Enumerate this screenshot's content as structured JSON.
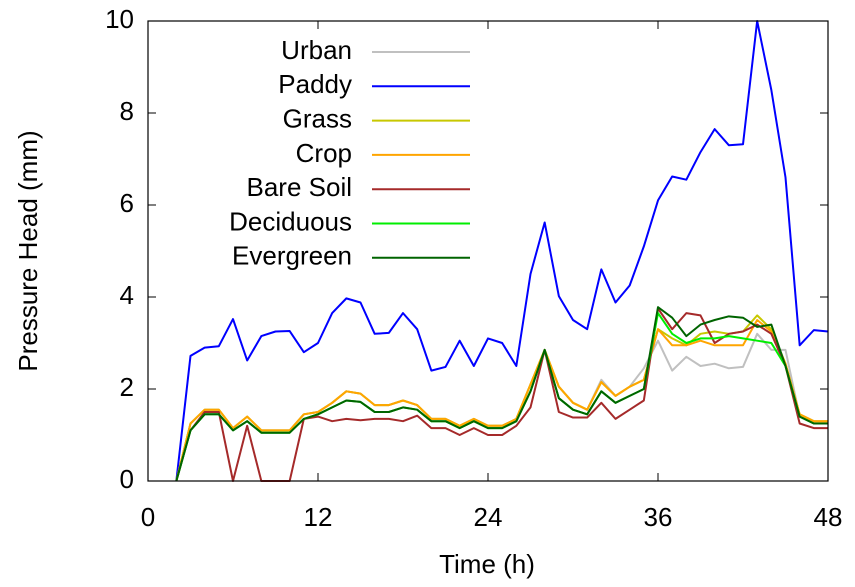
{
  "chart_data": {
    "type": "line",
    "xlabel": "Time (h)",
    "ylabel": "Pressure Head (mm)",
    "xlim": [
      0,
      48
    ],
    "ylim": [
      0,
      10
    ],
    "xticks": [
      0,
      12,
      24,
      36,
      48
    ],
    "yticks": [
      0,
      2,
      4,
      6,
      8,
      10
    ],
    "legend": "top-left",
    "x": [
      2,
      3,
      4,
      5,
      6,
      7,
      8,
      9,
      10,
      11,
      12,
      13,
      14,
      15,
      16,
      17,
      18,
      19,
      20,
      21,
      22,
      23,
      24,
      25,
      26,
      27,
      28,
      29,
      30,
      31,
      32,
      33,
      34,
      35,
      36,
      37,
      38,
      39,
      40,
      41,
      42,
      43,
      44,
      45,
      46,
      47,
      48
    ],
    "series": [
      {
        "name": "Urban",
        "color": "#c0c0c0",
        "values": [
          0,
          1.25,
          1.55,
          1.55,
          1.15,
          1.4,
          1.1,
          1.1,
          1.1,
          1.45,
          1.5,
          1.7,
          1.95,
          1.9,
          1.65,
          1.65,
          1.75,
          1.65,
          1.35,
          1.35,
          1.2,
          1.35,
          1.2,
          1.2,
          1.35,
          2.1,
          2.85,
          2.05,
          1.7,
          1.55,
          2.2,
          1.85,
          2.05,
          2.45,
          3.05,
          2.4,
          2.7,
          2.5,
          2.55,
          2.45,
          2.48,
          3.2,
          2.85,
          2.85,
          1.4,
          1.3,
          1.3
        ]
      },
      {
        "name": "Paddy",
        "color": "#0000ff",
        "values": [
          0,
          2.72,
          2.9,
          2.93,
          3.52,
          2.62,
          3.15,
          3.25,
          3.26,
          2.8,
          3.0,
          3.65,
          3.97,
          3.88,
          3.2,
          3.22,
          3.65,
          3.3,
          2.4,
          2.48,
          3.05,
          2.5,
          3.1,
          3.0,
          2.5,
          4.5,
          5.62,
          4.02,
          3.5,
          3.3,
          4.6,
          3.88,
          4.25,
          5.1,
          6.1,
          6.62,
          6.55,
          7.15,
          7.65,
          7.3,
          7.32,
          10.0,
          8.5,
          6.6,
          2.95,
          3.28,
          3.25
        ]
      },
      {
        "name": "Grass",
        "color": "#c8c800",
        "values": [
          0,
          1.25,
          1.55,
          1.55,
          1.15,
          1.4,
          1.1,
          1.1,
          1.1,
          1.45,
          1.5,
          1.7,
          1.95,
          1.9,
          1.65,
          1.65,
          1.75,
          1.65,
          1.35,
          1.35,
          1.2,
          1.35,
          1.2,
          1.2,
          1.35,
          2.1,
          2.85,
          2.05,
          1.7,
          1.55,
          2.15,
          1.85,
          2.05,
          2.2,
          3.3,
          3.1,
          2.95,
          3.2,
          3.25,
          3.2,
          3.25,
          3.6,
          3.3,
          2.55,
          1.45,
          1.3,
          1.3
        ]
      },
      {
        "name": "Crop",
        "color": "#ffa500",
        "values": [
          0,
          1.25,
          1.55,
          1.55,
          1.15,
          1.4,
          1.1,
          1.1,
          1.1,
          1.45,
          1.5,
          1.7,
          1.95,
          1.9,
          1.65,
          1.65,
          1.75,
          1.65,
          1.35,
          1.35,
          1.2,
          1.35,
          1.2,
          1.2,
          1.35,
          2.1,
          2.85,
          2.05,
          1.7,
          1.55,
          2.15,
          1.85,
          2.05,
          2.2,
          3.3,
          2.95,
          2.95,
          3.05,
          2.95,
          2.95,
          2.95,
          3.5,
          3.25,
          2.55,
          1.45,
          1.3,
          1.3
        ]
      },
      {
        "name": "Bare Soil",
        "color": "#a52a2a",
        "values": [
          0,
          1.1,
          1.5,
          1.5,
          0,
          1.2,
          0,
          0,
          0,
          1.35,
          1.4,
          1.3,
          1.35,
          1.32,
          1.35,
          1.35,
          1.3,
          1.42,
          1.15,
          1.15,
          1.0,
          1.15,
          1.0,
          1.0,
          1.2,
          1.6,
          2.85,
          1.5,
          1.38,
          1.38,
          1.7,
          1.35,
          1.55,
          1.75,
          3.75,
          3.3,
          3.65,
          3.6,
          3.0,
          3.2,
          3.25,
          3.4,
          3.2,
          2.5,
          1.25,
          1.15,
          1.15
        ]
      },
      {
        "name": "Deciduous",
        "color": "#00ee00",
        "values": [
          0,
          1.1,
          1.45,
          1.45,
          1.1,
          1.3,
          1.05,
          1.05,
          1.05,
          1.35,
          1.45,
          1.6,
          1.75,
          1.72,
          1.5,
          1.5,
          1.6,
          1.55,
          1.3,
          1.3,
          1.15,
          1.3,
          1.15,
          1.15,
          1.3,
          1.95,
          2.85,
          1.8,
          1.55,
          1.45,
          1.95,
          1.7,
          1.85,
          2.0,
          3.65,
          3.2,
          3.0,
          3.1,
          3.1,
          3.15,
          3.1,
          3.05,
          3.0,
          2.5,
          1.4,
          1.25,
          1.25
        ]
      },
      {
        "name": "Evergreen",
        "color": "#006400",
        "values": [
          0,
          1.1,
          1.45,
          1.45,
          1.1,
          1.3,
          1.05,
          1.05,
          1.05,
          1.35,
          1.45,
          1.6,
          1.75,
          1.72,
          1.5,
          1.5,
          1.6,
          1.55,
          1.3,
          1.3,
          1.15,
          1.3,
          1.15,
          1.15,
          1.3,
          1.95,
          2.85,
          1.8,
          1.55,
          1.45,
          1.95,
          1.7,
          1.85,
          2.0,
          3.78,
          3.55,
          3.15,
          3.4,
          3.5,
          3.58,
          3.55,
          3.35,
          3.4,
          2.5,
          1.4,
          1.25,
          1.25
        ]
      }
    ]
  }
}
